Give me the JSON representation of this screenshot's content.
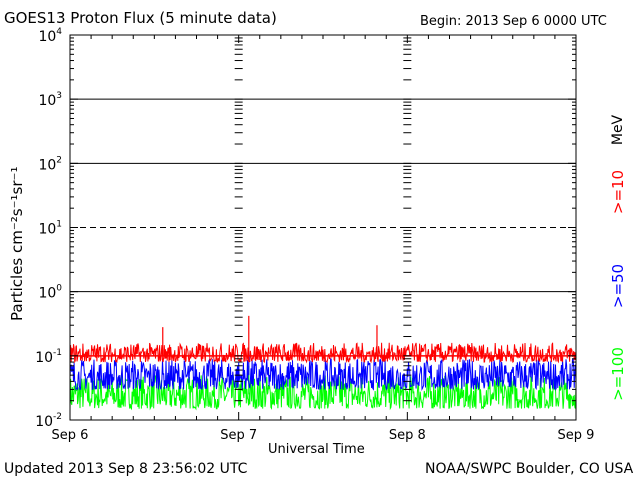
{
  "chart_data": {
    "type": "line",
    "title": "GOES13 Proton Flux (5 minute data)",
    "begin_label": "Begin: 2013 Sep 6 0000 UTC",
    "xlabel": "Universal Time",
    "ylabel": "Particles cm⁻²s⁻¹sr⁻¹",
    "categories": [
      "Sep 6",
      "Sep 7",
      "Sep 8",
      "Sep 9"
    ],
    "x_range_days": [
      0,
      3
    ],
    "y_scale": "log",
    "ylim": [
      0.01,
      10000
    ],
    "y_ticks": [
      {
        "base": "10",
        "exp": "-2",
        "value": 0.01
      },
      {
        "base": "10",
        "exp": "-1",
        "value": 0.1
      },
      {
        "base": "10",
        "exp": "0",
        "value": 1
      },
      {
        "base": "10",
        "exp": "1",
        "value": 10
      },
      {
        "base": "10",
        "exp": "2",
        "value": 100
      },
      {
        "base": "10",
        "exp": "3",
        "value": 1000
      },
      {
        "base": "10",
        "exp": "4",
        "value": 10000
      }
    ],
    "threshold": {
      "value": 10,
      "style": "dashed"
    },
    "reference_line": {
      "value": 0.1,
      "color": "#ff0000"
    },
    "series_unit": "MeV",
    "series": [
      {
        "name": ">=10",
        "color": "#ff0000",
        "baseline": 0.1,
        "spread_low": 0.08,
        "spread_high": 0.16,
        "spikes": [
          0.42,
          0.3,
          0.28
        ]
      },
      {
        "name": ">=50",
        "color": "#0000ff",
        "baseline": 0.05,
        "spread_low": 0.03,
        "spread_high": 0.09,
        "spikes": [
          0.12
        ]
      },
      {
        "name": ">=100",
        "color": "#00ff00",
        "baseline": 0.025,
        "spread_low": 0.015,
        "spread_high": 0.05,
        "spikes": [
          0.07
        ]
      }
    ]
  },
  "footer": {
    "updated": "Updated 2013 Sep  8 23:56:02 UTC",
    "credit": "NOAA/SWPC Boulder, CO USA"
  }
}
